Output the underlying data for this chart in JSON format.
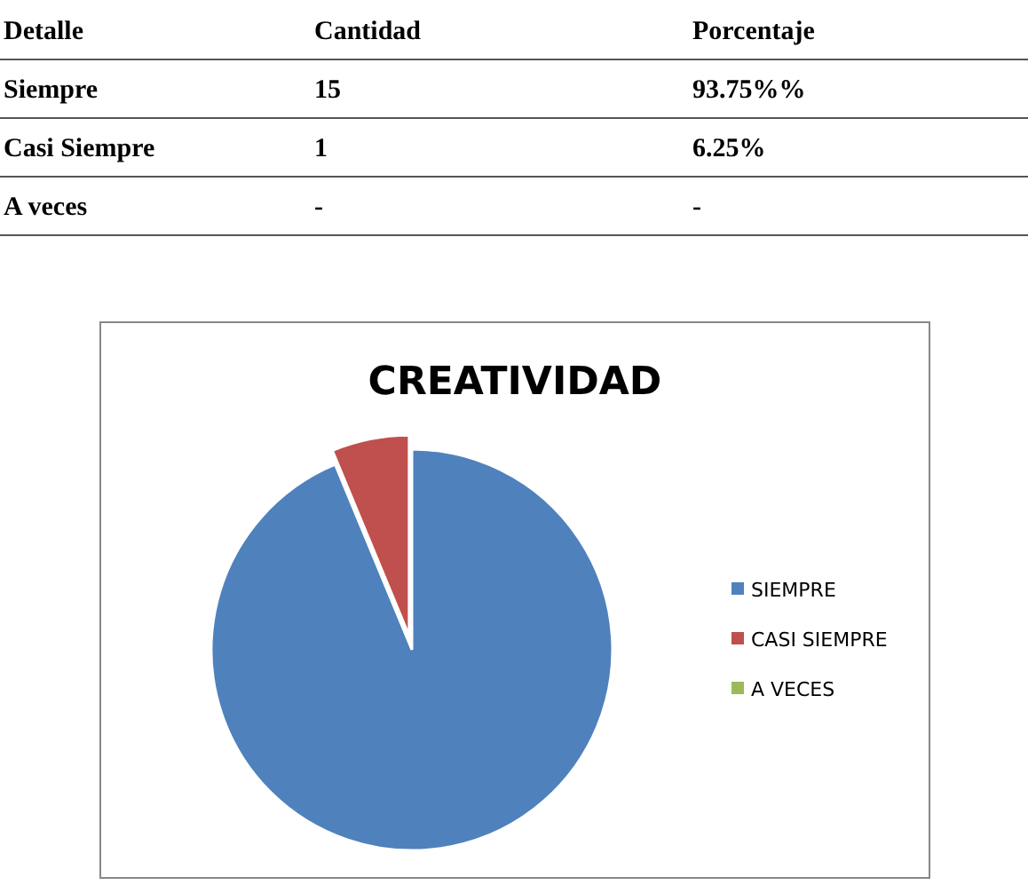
{
  "chart_data": {
    "type": "pie",
    "title": "CREATIVIDAD",
    "categories": [
      "SIEMPRE",
      "CASI SIEMPRE",
      "A VECES"
    ],
    "values": [
      93.75,
      6.25,
      0
    ],
    "colors": [
      "#4f81bd",
      "#c0504d",
      "#9bbb59"
    ],
    "legend": "right",
    "annotations": [
      "Detalle",
      "Cantidad",
      "Porcentaje",
      "Siempre",
      "15",
      "93.75%%",
      "Casi Siempre",
      "1",
      "6.25%",
      "A veces",
      "-",
      "-"
    ]
  }
}
